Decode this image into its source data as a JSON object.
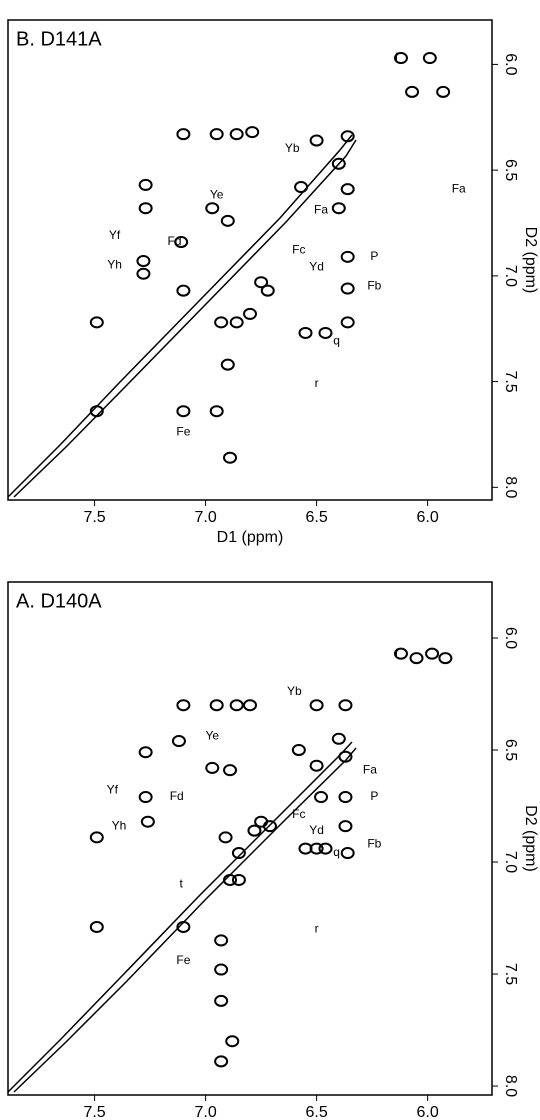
{
  "chart_data": [
    {
      "type": "scatter",
      "title": "B. D141A",
      "xlabel": "D1 (ppm)",
      "ylabel": "D2 (ppm)",
      "xlim": [
        7.89,
        5.71
      ],
      "ylim": [
        5.79,
        8.06
      ],
      "xticks": [
        7.5,
        {
          "value": 7,
          "label": "7.0"
        },
        6.5,
        {
          "value": 6,
          "label": "6.0"
        }
      ],
      "yticks": [
        {
          "value": 6,
          "label": "6.0"
        },
        6.5,
        {
          "value": 7,
          "label": "7.0"
        },
        7.5,
        {
          "value": 8,
          "label": "8.0"
        }
      ],
      "color": "#000000",
      "x": [
        6.12,
        5.99,
        6.07,
        5.93,
        7.1,
        6.95,
        6.86,
        6.79,
        6.5,
        6.36,
        7.27,
        7.27,
        6.97,
        6.57,
        6.4,
        6.36,
        6.4,
        6.9,
        7.11,
        7.28,
        7.28,
        7.1,
        6.75,
        6.72,
        6.36,
        6.36,
        7.49,
        6.93,
        6.86,
        6.8,
        6.36,
        6.55,
        6.46,
        6.9,
        7.49,
        7.1,
        6.95,
        6.89
      ],
      "y": [
        5.97,
        5.97,
        6.13,
        6.13,
        6.33,
        6.33,
        6.33,
        6.32,
        6.36,
        6.34,
        6.57,
        6.68,
        6.68,
        6.58,
        6.47,
        6.59,
        6.68,
        6.74,
        6.84,
        6.93,
        6.99,
        7.07,
        7.03,
        7.07,
        6.91,
        7.06,
        7.22,
        7.22,
        7.22,
        7.18,
        7.22,
        7.27,
        7.27,
        7.42,
        7.64,
        7.64,
        7.64,
        7.86
      ],
      "annotations": [
        {
          "text": "f",
          "x": 6.14,
          "y": 5.97
        },
        {
          "text": "Yb",
          "x": 6.61,
          "y": 6.4
        },
        {
          "text": "Fa",
          "x": 5.86,
          "y": 6.59
        },
        {
          "text": "Fa",
          "x": 6.48,
          "y": 6.69
        },
        {
          "text": "Ye",
          "x": 6.95,
          "y": 6.62
        },
        {
          "text": "Yf",
          "x": 7.41,
          "y": 6.81
        },
        {
          "text": "Fd",
          "x": 7.14,
          "y": 6.84
        },
        {
          "text": "Yh",
          "x": 7.41,
          "y": 6.95
        },
        {
          "text": "Fc",
          "x": 6.58,
          "y": 6.88
        },
        {
          "text": "Yd",
          "x": 6.5,
          "y": 6.96
        },
        {
          "text": "P",
          "x": 6.24,
          "y": 6.91
        },
        {
          "text": "Fb",
          "x": 6.24,
          "y": 7.05
        },
        {
          "text": "q",
          "x": 6.41,
          "y": 7.31
        },
        {
          "text": "r",
          "x": 6.5,
          "y": 7.51
        },
        {
          "text": "Fe",
          "x": 7.1,
          "y": 7.74
        }
      ]
    },
    {
      "type": "scatter",
      "title": "A. D140A",
      "xlabel": "D1 (ppm)",
      "ylabel": "D2 (ppm)",
      "xlim": [
        7.89,
        5.71
      ],
      "ylim": [
        5.75,
        8.04
      ],
      "xticks": [
        7.5,
        {
          "value": 7,
          "label": "7.0"
        },
        6.5,
        {
          "value": 6,
          "label": "6.0"
        }
      ],
      "yticks": [
        {
          "value": 6,
          "label": "6.0"
        },
        6.5,
        {
          "value": 7,
          "label": "7.0"
        },
        7.5,
        {
          "value": 8,
          "label": "8.0"
        }
      ],
      "color": "#000000",
      "x": [
        6.12,
        5.98,
        6.05,
        5.92,
        7.1,
        6.95,
        6.86,
        6.8,
        6.5,
        6.37,
        7.12,
        6.97,
        6.89,
        7.27,
        6.58,
        6.4,
        6.37,
        6.5,
        6.48,
        6.37,
        7.27,
        7.26,
        6.75,
        6.71,
        6.37,
        6.36,
        7.49,
        6.91,
        6.78,
        6.85,
        6.55,
        6.5,
        6.46,
        6.89,
        6.85,
        7.49,
        7.1,
        6.93,
        6.93,
        6.93,
        6.88,
        6.93
      ],
      "y": [
        6.07,
        6.07,
        6.09,
        6.09,
        6.3,
        6.3,
        6.3,
        6.3,
        6.3,
        6.3,
        6.46,
        6.58,
        6.59,
        6.51,
        6.5,
        6.45,
        6.53,
        6.57,
        6.71,
        6.71,
        6.71,
        6.82,
        6.82,
        6.84,
        6.84,
        6.96,
        6.89,
        6.89,
        6.86,
        6.96,
        6.94,
        6.94,
        6.94,
        7.08,
        7.08,
        7.29,
        7.29,
        7.35,
        7.48,
        7.62,
        7.8,
        7.89
      ],
      "annotations": [
        {
          "text": "f",
          "x": 6.14,
          "y": 6.07
        },
        {
          "text": "Yb",
          "x": 6.6,
          "y": 6.24
        },
        {
          "text": "Fa",
          "x": 6.26,
          "y": 6.59
        },
        {
          "text": "Ye",
          "x": 6.97,
          "y": 6.44
        },
        {
          "text": "Yf",
          "x": 7.42,
          "y": 6.68
        },
        {
          "text": "Fd",
          "x": 7.13,
          "y": 6.71
        },
        {
          "text": "Yh",
          "x": 7.39,
          "y": 6.84
        },
        {
          "text": "Fc",
          "x": 6.58,
          "y": 6.79
        },
        {
          "text": "Yd",
          "x": 6.5,
          "y": 6.86
        },
        {
          "text": "P",
          "x": 6.24,
          "y": 6.71
        },
        {
          "text": "Fb",
          "x": 6.24,
          "y": 6.92
        },
        {
          "text": "q",
          "x": 6.41,
          "y": 6.96
        },
        {
          "text": "t",
          "x": 7.11,
          "y": 7.1
        },
        {
          "text": "r",
          "x": 6.5,
          "y": 7.3
        },
        {
          "text": "Fe",
          "x": 7.1,
          "y": 7.44
        }
      ]
    }
  ]
}
